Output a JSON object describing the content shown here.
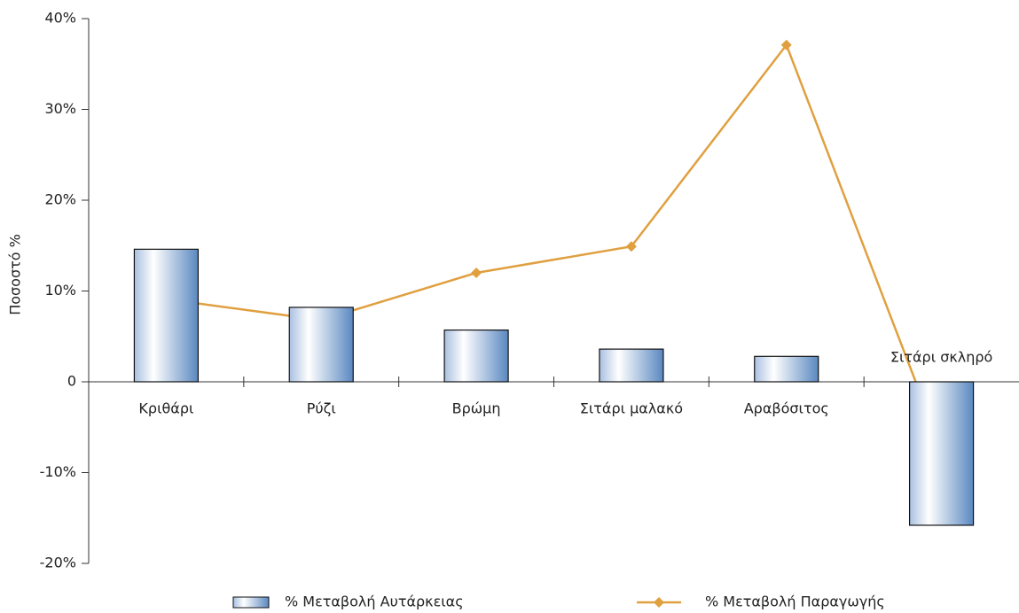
{
  "chart_data": {
    "type": "bar-line",
    "y_label": "Ποσοστό %",
    "categories": [
      "Κριθάρι",
      "Ρύζι",
      "Βρώμη",
      "Σιτάρι μαλακό",
      "Αραβόσιτος",
      "Σιτάρι σκληρό"
    ],
    "series": [
      {
        "name": "% Μεταβολή Αυτάρκειας",
        "kind": "bar",
        "color": "#5a88c0",
        "values": [
          14.6,
          8.2,
          5.7,
          3.6,
          2.8,
          -15.8
        ]
      },
      {
        "name": "% Μεταβολή Παραγωγής",
        "kind": "line",
        "color": "#e0a040",
        "values": [
          9.1,
          6.8,
          12.0,
          14.9,
          37.1,
          -7.4
        ]
      }
    ],
    "ylim": [
      -20,
      40
    ],
    "yticks": [
      {
        "value": -20,
        "label": "-20%"
      },
      {
        "value": -10,
        "label": "-10%"
      },
      0,
      {
        "value": 10,
        "label": "10%"
      },
      {
        "value": 20,
        "label": "20%"
      },
      {
        "value": 30,
        "label": "30%"
      },
      {
        "value": 40,
        "label": "40%"
      }
    ],
    "grid": false
  }
}
